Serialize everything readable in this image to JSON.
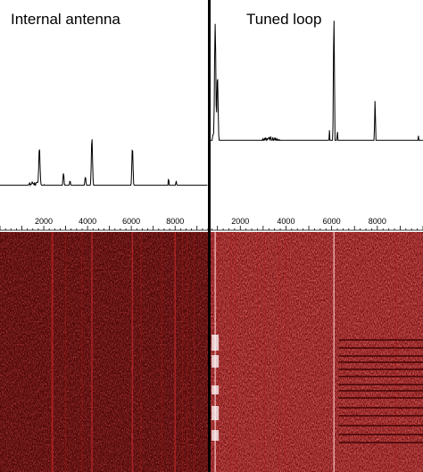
{
  "chart_data": [
    {
      "type": "line",
      "title": "Internal antenna",
      "xlabel": "",
      "ylabel": "",
      "xlim": [
        0,
        9500
      ],
      "xticks": [
        2000,
        4000,
        6000,
        8000
      ],
      "xtick_labels": [
        "2000",
        "4000",
        "6000",
        "8000"
      ],
      "ylim": [
        0,
        1
      ],
      "baseline": [
        [
          0,
          0.02
        ],
        [
          700,
          0.1
        ],
        [
          1500,
          0.15
        ],
        [
          2500,
          0.11
        ],
        [
          3500,
          0.13
        ],
        [
          4500,
          0.12
        ],
        [
          6000,
          0.12
        ],
        [
          7500,
          0.1
        ],
        [
          9000,
          0.11
        ],
        [
          9500,
          0.11
        ]
      ],
      "peaks": [
        [
          1800,
          0.33
        ],
        [
          2900,
          0.2
        ],
        [
          3200,
          0.16
        ],
        [
          3900,
          0.18
        ],
        [
          4200,
          0.38
        ],
        [
          6050,
          0.33
        ],
        [
          7700,
          0.17
        ],
        [
          8050,
          0.16
        ]
      ],
      "waterfall": {
        "colormap": "red-black",
        "intensity": "low",
        "bright_lines_x": [
          2400,
          4200,
          6050,
          8000
        ]
      }
    },
    {
      "type": "line",
      "title": "Tuned loop",
      "xlabel": "",
      "ylabel": "",
      "xlim": [
        700,
        10000
      ],
      "xticks": [
        2000,
        4000,
        6000,
        8000
      ],
      "xtick_labels": [
        "2000",
        "4000",
        "6000",
        "8000"
      ],
      "ylim": [
        0,
        1
      ],
      "baseline": [
        [
          700,
          0.25
        ],
        [
          800,
          0.4
        ],
        [
          1100,
          0.3
        ],
        [
          1600,
          0.27
        ],
        [
          2500,
          0.33
        ],
        [
          3200,
          0.38
        ],
        [
          3800,
          0.36
        ],
        [
          4500,
          0.28
        ],
        [
          5200,
          0.22
        ],
        [
          5800,
          0.17
        ],
        [
          6400,
          0.15
        ],
        [
          7200,
          0.14
        ],
        [
          8200,
          0.16
        ],
        [
          9000,
          0.17
        ],
        [
          10000,
          0.2
        ]
      ],
      "peaks": [
        [
          900,
          0.96
        ],
        [
          1000,
          0.7
        ],
        [
          1800,
          0.33
        ],
        [
          5900,
          0.42
        ],
        [
          6100,
          0.98
        ],
        [
          6250,
          0.42
        ],
        [
          6600,
          0.27
        ],
        [
          7200,
          0.24
        ],
        [
          7900,
          0.57
        ],
        [
          8100,
          0.36
        ],
        [
          9600,
          0.3
        ],
        [
          9800,
          0.39
        ]
      ],
      "waterfall": {
        "colormap": "red-black",
        "intensity": "high",
        "bright_lines_x": [
          900,
          6100
        ],
        "burst_segments_x": 900
      }
    }
  ]
}
